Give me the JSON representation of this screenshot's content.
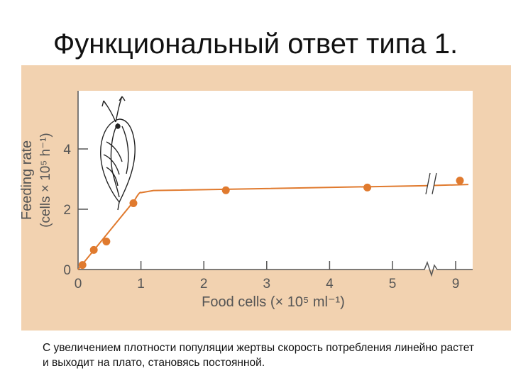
{
  "slide": {
    "title": "Функциональный ответ типа 1.",
    "caption": "С увеличением плотности популяции жертвы скорость потребления линейно растет и выходит на плато, становясь постоянной."
  },
  "colors": {
    "panel_background": "#f2d2b0",
    "plot_background": "#ffffff",
    "series": "#e07a2e",
    "axis": "#555555"
  },
  "chart_data": {
    "type": "scatter",
    "xlabel": "Food cells (× 10⁵ ml⁻¹)",
    "ylabel_line1": "Feeding rate",
    "ylabel_line2": "(cells × 10⁵ h⁻¹)",
    "x_tick_labels": [
      "0",
      "1",
      "2",
      "3",
      "4",
      "5",
      "9"
    ],
    "y_tick_labels": [
      "0",
      "2",
      "4"
    ],
    "x_axis_break": "between 5 and 9",
    "ylim": [
      0,
      6
    ],
    "grid": false,
    "series": [
      {
        "points": [
          {
            "x": 0.07,
            "y": 0.15
          },
          {
            "x": 0.25,
            "y": 0.65
          },
          {
            "x": 0.45,
            "y": 0.93
          },
          {
            "x": 0.88,
            "y": 2.2
          },
          {
            "x": 2.35,
            "y": 2.63
          },
          {
            "x": 4.6,
            "y": 2.72
          },
          {
            "x": 9.1,
            "y": 2.95
          }
        ],
        "fit_line": [
          {
            "x": 0.0,
            "y": 0.0
          },
          {
            "x": 0.9,
            "y": 2.3
          },
          {
            "x": 1.0,
            "y": 2.55
          },
          {
            "x": 1.2,
            "y": 2.62
          },
          {
            "x": 5.5,
            "y": 2.78
          },
          {
            "x": 9.3,
            "y": 2.82
          }
        ]
      }
    ],
    "illustration": "daphnia-icon"
  }
}
